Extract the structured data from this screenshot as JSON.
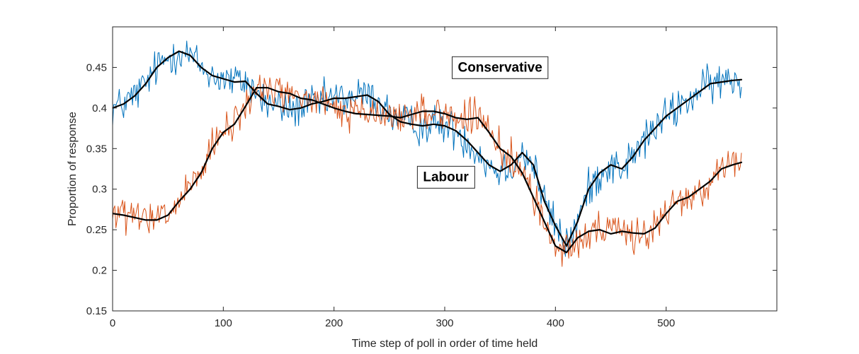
{
  "chart_data": {
    "type": "line",
    "title": "",
    "xlabel": "Time step of poll in order of time held",
    "ylabel": "Proportion of response",
    "xlim": [
      0,
      600
    ],
    "ylim": [
      0.15,
      0.5
    ],
    "xticks": [
      0,
      100,
      200,
      300,
      400,
      500
    ],
    "yticks": [
      0.15,
      0.2,
      0.25,
      0.3,
      0.35,
      0.4,
      0.45
    ],
    "xtick_labels": [
      "0",
      "100",
      "200",
      "300",
      "400",
      "500"
    ],
    "ytick_labels": [
      "0.15",
      "0.2",
      "0.25",
      "0.3",
      "0.35",
      "0.4",
      "0.45"
    ],
    "grid": false,
    "colors": {
      "conservative": "#0072BD",
      "labour": "#D95319",
      "smooth": "#000000"
    },
    "annotations": [
      {
        "text": "Conservative",
        "x": 350,
        "y": 0.451,
        "series": "Conservative"
      },
      {
        "text": "Labour",
        "x": 301,
        "y": 0.316,
        "series": "Labour"
      }
    ],
    "series": [
      {
        "name": "Conservative",
        "kind": "raw",
        "color": "#0072BD",
        "x": [
          0,
          10,
          20,
          30,
          40,
          50,
          60,
          70,
          80,
          90,
          100,
          110,
          120,
          130,
          140,
          150,
          160,
          170,
          180,
          190,
          200,
          210,
          220,
          230,
          240,
          250,
          260,
          270,
          280,
          290,
          300,
          310,
          320,
          330,
          340,
          350,
          360,
          370,
          380,
          390,
          400,
          410,
          420,
          430,
          440,
          450,
          460,
          470,
          480,
          490,
          500,
          510,
          520,
          530,
          540,
          550,
          560,
          568
        ],
        "values": [
          0.4,
          0.405,
          0.415,
          0.43,
          0.45,
          0.462,
          0.47,
          0.465,
          0.45,
          0.44,
          0.436,
          0.432,
          0.433,
          0.418,
          0.405,
          0.402,
          0.398,
          0.4,
          0.405,
          0.408,
          0.412,
          0.412,
          0.414,
          0.416,
          0.408,
          0.392,
          0.383,
          0.38,
          0.378,
          0.38,
          0.378,
          0.372,
          0.36,
          0.345,
          0.33,
          0.322,
          0.33,
          0.345,
          0.33,
          0.285,
          0.255,
          0.23,
          0.26,
          0.3,
          0.32,
          0.33,
          0.325,
          0.34,
          0.36,
          0.375,
          0.39,
          0.4,
          0.41,
          0.42,
          0.43,
          0.432,
          0.434,
          0.435
        ],
        "noise": 0.022
      },
      {
        "name": "Labour",
        "kind": "raw",
        "color": "#D95319",
        "x": [
          0,
          10,
          20,
          30,
          40,
          50,
          60,
          70,
          80,
          90,
          100,
          110,
          120,
          130,
          140,
          150,
          160,
          170,
          180,
          190,
          200,
          210,
          220,
          230,
          240,
          250,
          260,
          270,
          280,
          290,
          300,
          310,
          320,
          330,
          340,
          350,
          360,
          370,
          380,
          390,
          400,
          410,
          420,
          430,
          440,
          450,
          460,
          470,
          480,
          490,
          500,
          510,
          520,
          530,
          540,
          550,
          560,
          568
        ],
        "values": [
          0.27,
          0.268,
          0.265,
          0.262,
          0.262,
          0.268,
          0.285,
          0.3,
          0.32,
          0.35,
          0.37,
          0.38,
          0.402,
          0.425,
          0.425,
          0.42,
          0.418,
          0.412,
          0.41,
          0.405,
          0.4,
          0.396,
          0.393,
          0.392,
          0.391,
          0.39,
          0.388,
          0.392,
          0.396,
          0.396,
          0.393,
          0.388,
          0.386,
          0.388,
          0.37,
          0.35,
          0.34,
          0.32,
          0.29,
          0.26,
          0.23,
          0.222,
          0.24,
          0.248,
          0.25,
          0.245,
          0.248,
          0.246,
          0.245,
          0.252,
          0.27,
          0.285,
          0.29,
          0.3,
          0.31,
          0.325,
          0.33,
          0.333
        ],
        "noise": 0.02
      },
      {
        "name": "Conservative (smoothed)",
        "kind": "smooth",
        "color": "#000000",
        "x": [
          0,
          10,
          20,
          30,
          40,
          50,
          60,
          70,
          80,
          90,
          100,
          110,
          120,
          130,
          140,
          150,
          160,
          170,
          180,
          190,
          200,
          210,
          220,
          230,
          240,
          250,
          260,
          270,
          280,
          290,
          300,
          310,
          320,
          330,
          340,
          350,
          360,
          370,
          380,
          390,
          400,
          410,
          420,
          430,
          440,
          450,
          460,
          470,
          480,
          490,
          500,
          510,
          520,
          530,
          540,
          550,
          560,
          568
        ],
        "values": [
          0.4,
          0.405,
          0.415,
          0.43,
          0.45,
          0.462,
          0.47,
          0.465,
          0.45,
          0.44,
          0.436,
          0.432,
          0.433,
          0.418,
          0.405,
          0.402,
          0.398,
          0.4,
          0.405,
          0.408,
          0.412,
          0.412,
          0.414,
          0.416,
          0.408,
          0.392,
          0.383,
          0.38,
          0.378,
          0.38,
          0.378,
          0.372,
          0.36,
          0.345,
          0.33,
          0.322,
          0.33,
          0.345,
          0.33,
          0.285,
          0.255,
          0.23,
          0.26,
          0.3,
          0.32,
          0.33,
          0.325,
          0.34,
          0.36,
          0.375,
          0.39,
          0.4,
          0.41,
          0.42,
          0.43,
          0.432,
          0.434,
          0.435
        ]
      },
      {
        "name": "Labour (smoothed)",
        "kind": "smooth",
        "color": "#000000",
        "x": [
          0,
          10,
          20,
          30,
          40,
          50,
          60,
          70,
          80,
          90,
          100,
          110,
          120,
          130,
          140,
          150,
          160,
          170,
          180,
          190,
          200,
          210,
          220,
          230,
          240,
          250,
          260,
          270,
          280,
          290,
          300,
          310,
          320,
          330,
          340,
          350,
          360,
          370,
          380,
          390,
          400,
          410,
          420,
          430,
          440,
          450,
          460,
          470,
          480,
          490,
          500,
          510,
          520,
          530,
          540,
          550,
          560,
          568
        ],
        "values": [
          0.27,
          0.268,
          0.265,
          0.262,
          0.262,
          0.268,
          0.285,
          0.3,
          0.32,
          0.35,
          0.37,
          0.38,
          0.402,
          0.425,
          0.425,
          0.42,
          0.418,
          0.412,
          0.41,
          0.405,
          0.4,
          0.396,
          0.393,
          0.392,
          0.391,
          0.39,
          0.388,
          0.392,
          0.396,
          0.396,
          0.393,
          0.388,
          0.386,
          0.388,
          0.37,
          0.35,
          0.34,
          0.32,
          0.29,
          0.26,
          0.23,
          0.222,
          0.24,
          0.248,
          0.25,
          0.245,
          0.248,
          0.246,
          0.245,
          0.252,
          0.27,
          0.285,
          0.29,
          0.3,
          0.31,
          0.325,
          0.33,
          0.333
        ]
      }
    ]
  }
}
